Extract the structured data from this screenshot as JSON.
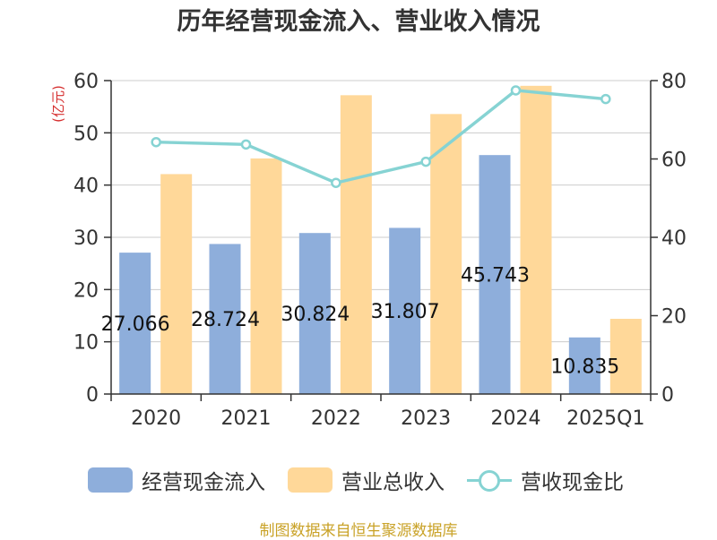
{
  "chart_data": {
    "type": "bar",
    "title": "历年经营现金流入、营业收入情况",
    "categories": [
      "2020",
      "2021",
      "2022",
      "2023",
      "2024",
      "2025Q1"
    ],
    "ylabel_left": "(亿元)",
    "ylim_left": [
      0,
      60
    ],
    "yticks_left": [
      "0",
      "10",
      "20",
      "30",
      "40",
      "50",
      "60"
    ],
    "ylim_right": [
      0,
      80
    ],
    "yticks_right": [
      "0",
      "20",
      "40",
      "60",
      "80"
    ],
    "grid": true,
    "legend_position": "bottom",
    "series": [
      {
        "name": "经营现金流入",
        "type": "bar",
        "axis": "left",
        "color": "#8eaedb",
        "values": [
          27.066,
          28.724,
          30.824,
          31.807,
          45.743,
          10.835
        ],
        "labels": [
          "27.066",
          "28.724",
          "30.824",
          "31.807",
          "45.743",
          "10.835"
        ]
      },
      {
        "name": "营业总收入",
        "type": "bar",
        "axis": "left",
        "color": "#ffd899",
        "values": [
          42.1,
          45.1,
          57.2,
          53.6,
          59.0,
          14.4
        ]
      },
      {
        "name": "营收现金比",
        "type": "line",
        "axis": "right",
        "color": "#86d3d3",
        "values": [
          64.3,
          63.7,
          53.9,
          59.3,
          77.5,
          75.3
        ]
      }
    ]
  },
  "legend": {
    "items": [
      {
        "label": "经营现金流入"
      },
      {
        "label": "营业总收入"
      },
      {
        "label": "营收现金比"
      }
    ]
  },
  "source": "制图数据来自恒生聚源数据库"
}
